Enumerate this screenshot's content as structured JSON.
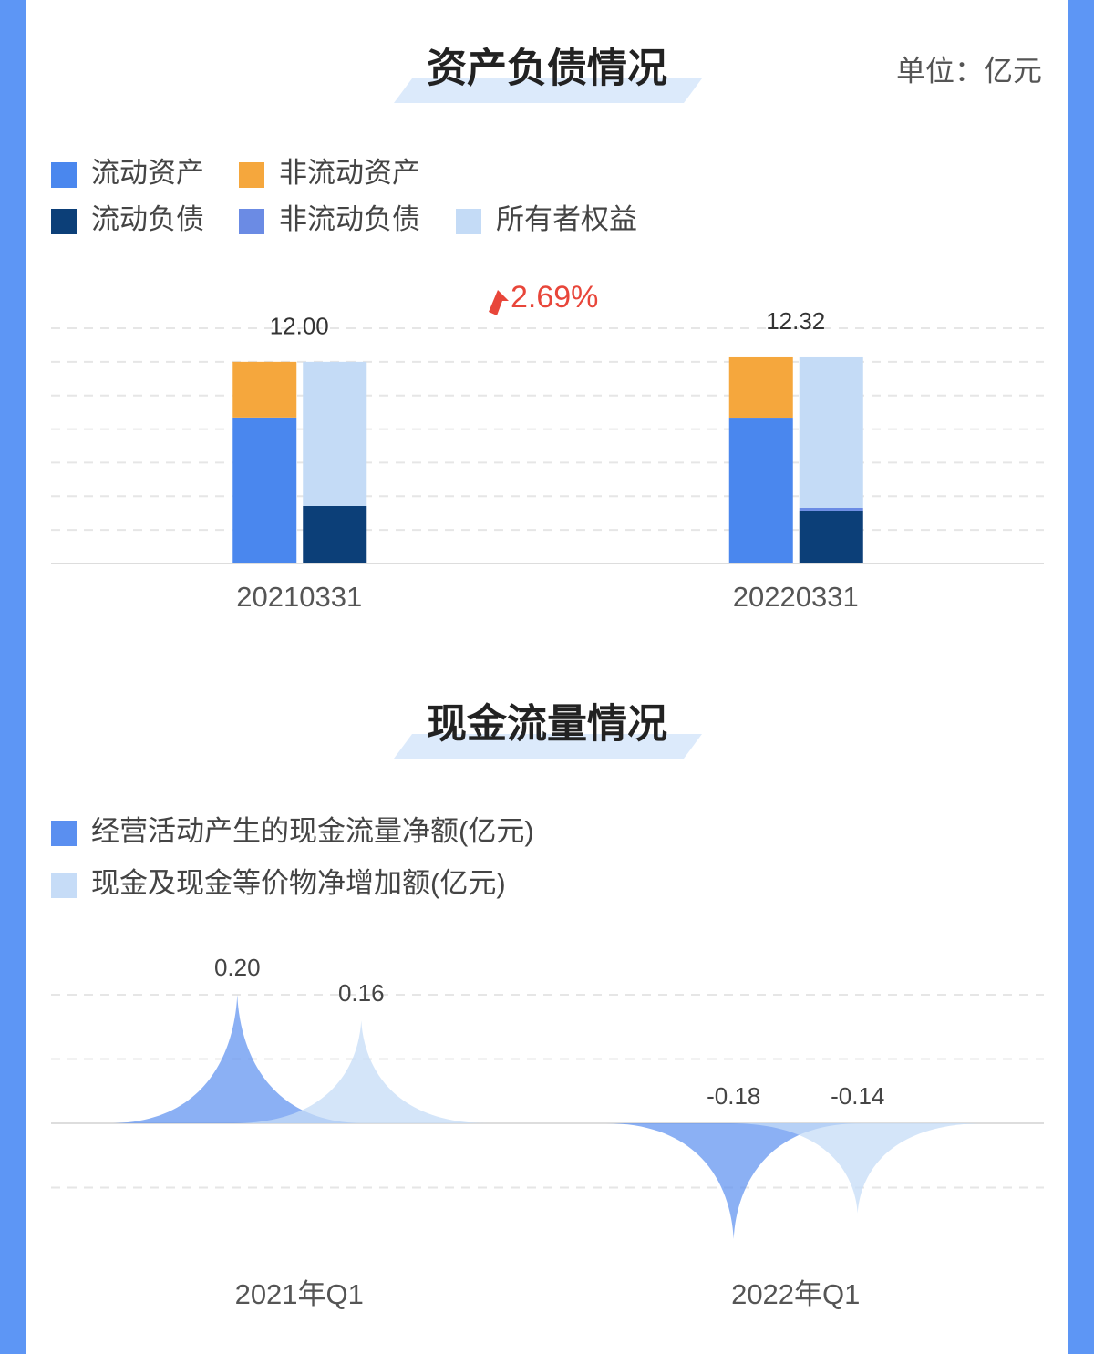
{
  "chart_data": [
    {
      "type": "bar",
      "title": "资产负债情况",
      "unit": "单位：亿元",
      "categories": [
        "20210331",
        "20220331"
      ],
      "series": [
        {
          "name": "流动资产",
          "color": "#4a87ee",
          "stack": 1,
          "values": [
            8.69,
            8.68
          ]
        },
        {
          "name": "非流动资产",
          "color": "#f5a73d",
          "stack": 1,
          "values": [
            3.31,
            3.64
          ]
        },
        {
          "name": "流动负债",
          "color": "#0c3f78",
          "stack": 2,
          "values": [
            3.42,
            3.15
          ]
        },
        {
          "name": "非流动负债",
          "color": "#6b8be4",
          "stack": 2,
          "values": [
            0,
            0.16
          ]
        },
        {
          "name": "所有者权益",
          "color": "#c4dbf6",
          "stack": 2,
          "values": [
            8.58,
            9.01
          ]
        }
      ],
      "totals": [
        12.0,
        12.32
      ],
      "total_labels": [
        "12.00",
        "12.32"
      ],
      "annotation": "2.69%",
      "ylim": [
        0,
        14
      ],
      "yticks": [
        0,
        2,
        4,
        6,
        8,
        10,
        12,
        14
      ],
      "grid": true,
      "tick_labels": false
    },
    {
      "type": "area",
      "title": "现金流量情况",
      "categories": [
        "2021年Q1",
        "2022年Q1"
      ],
      "series": [
        {
          "name": "经营活动产生的现金流量净额(亿元)",
          "color": "#5a8ff0",
          "values": [
            0.2,
            -0.18
          ],
          "value_labels": [
            "0.20",
            "-0.18"
          ]
        },
        {
          "name": "现金及现金等价物净增加额(亿元)",
          "color": "#c6dcf7",
          "values": [
            0.16,
            -0.14
          ],
          "value_labels": [
            "0.16",
            "-0.14"
          ]
        }
      ],
      "ylim": [
        -0.2,
        0.2
      ],
      "yticks": [
        -0.1,
        0,
        0.1,
        0.2
      ],
      "grid": true,
      "tick_labels": false
    }
  ]
}
